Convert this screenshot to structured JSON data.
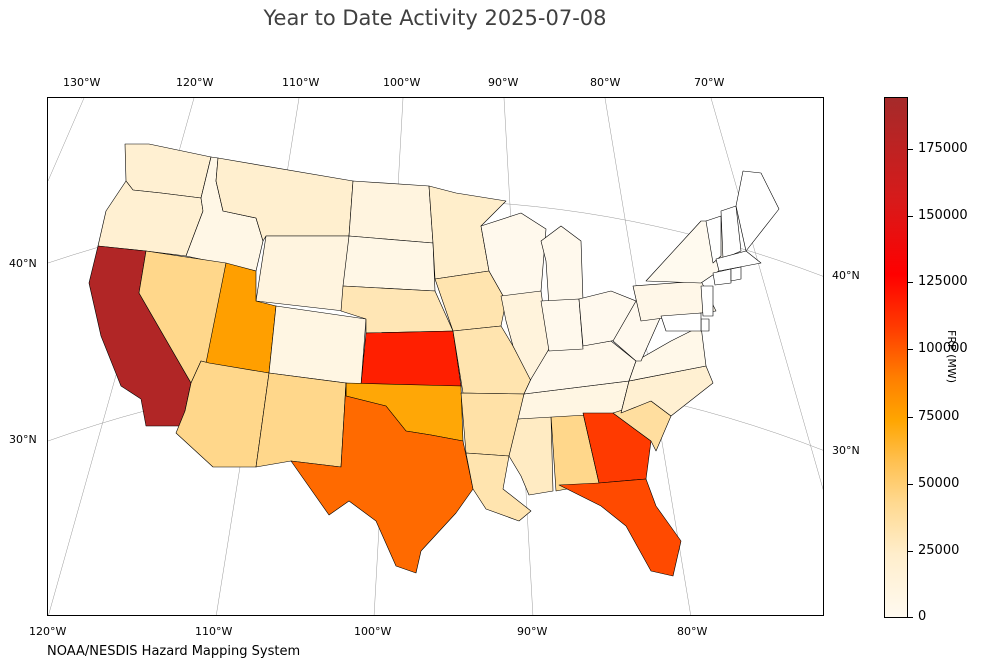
{
  "title": "Year to Date Activity 2025-07-08",
  "credit": "NOAA/NESDIS Hazard Mapping System",
  "top_longitude_labels": [
    "130°W",
    "120°W",
    "110°W",
    "100°W",
    "90°W",
    "80°W",
    "70°W"
  ],
  "bottom_longitude_labels": [
    "120°W",
    "110°W",
    "100°W",
    "90°W",
    "80°W"
  ],
  "left_latitude_labels": [
    "40°N",
    "30°N"
  ],
  "right_latitude_labels": [
    "40°N",
    "30°N"
  ],
  "colorbar": {
    "label": "FRP (MW)",
    "ticks": [
      "175000",
      "150000",
      "125000",
      "100000",
      "75000",
      "50000",
      "25000",
      "0"
    ],
    "max": 195000,
    "colors": [
      "#fffaf0",
      "#ffeecc",
      "#ffd990",
      "#ffc050",
      "#ffa500",
      "#ff7f00",
      "#ff3a00",
      "#ff0000",
      "#d81a1a",
      "#a52a2a"
    ]
  },
  "chart_data": {
    "type": "choropleth",
    "units": "FRP (MW)",
    "states": [
      {
        "name": "California",
        "value": 190000
      },
      {
        "name": "Kansas",
        "value": 140000
      },
      {
        "name": "Georgia",
        "value": 130000
      },
      {
        "name": "Florida",
        "value": 125000
      },
      {
        "name": "Texas",
        "value": 115000
      },
      {
        "name": "Utah",
        "value": 90000
      },
      {
        "name": "Oklahoma",
        "value": 85000
      },
      {
        "name": "Nevada",
        "value": 45000
      },
      {
        "name": "Arizona",
        "value": 45000
      },
      {
        "name": "New Mexico",
        "value": 45000
      },
      {
        "name": "Alabama",
        "value": 45000
      },
      {
        "name": "South Carolina",
        "value": 38000
      },
      {
        "name": "Arkansas",
        "value": 35000
      },
      {
        "name": "Louisiana",
        "value": 32000
      },
      {
        "name": "Missouri",
        "value": 32000
      },
      {
        "name": "Iowa",
        "value": 32000
      },
      {
        "name": "Nebraska",
        "value": 30000
      },
      {
        "name": "Mississippi",
        "value": 25000
      },
      {
        "name": "Minnesota",
        "value": 22000
      },
      {
        "name": "Montana",
        "value": 20000
      },
      {
        "name": "Oregon",
        "value": 18000
      },
      {
        "name": "Washington",
        "value": 18000
      },
      {
        "name": "North Carolina",
        "value": 18000
      },
      {
        "name": "Illinois",
        "value": 12000
      },
      {
        "name": "Wyoming",
        "value": 10000
      },
      {
        "name": "North Dakota",
        "value": 10000
      },
      {
        "name": "Colorado",
        "value": 8000
      },
      {
        "name": "Tennessee",
        "value": 8000
      },
      {
        "name": "Idaho",
        "value": 6000
      },
      {
        "name": "South Dakota",
        "value": 6000
      },
      {
        "name": "Pennsylvania",
        "value": 5000
      },
      {
        "name": "Virginia",
        "value": 4000
      },
      {
        "name": "Kentucky",
        "value": 3000
      },
      {
        "name": "Wisconsin",
        "value": 2000
      },
      {
        "name": "Michigan",
        "value": 2000
      },
      {
        "name": "Indiana",
        "value": 2000
      },
      {
        "name": "Ohio",
        "value": 1000
      },
      {
        "name": "West Virginia",
        "value": 1000
      },
      {
        "name": "New York",
        "value": 500
      },
      {
        "name": "Maine",
        "value": 0
      },
      {
        "name": "Vermont",
        "value": 0
      },
      {
        "name": "New Hampshire",
        "value": 0
      },
      {
        "name": "Massachusetts",
        "value": 0
      },
      {
        "name": "Connecticut",
        "value": 0
      },
      {
        "name": "Rhode Island",
        "value": 0
      },
      {
        "name": "New Jersey",
        "value": 0
      },
      {
        "name": "Delaware",
        "value": 0
      },
      {
        "name": "Maryland",
        "value": 0
      }
    ]
  }
}
